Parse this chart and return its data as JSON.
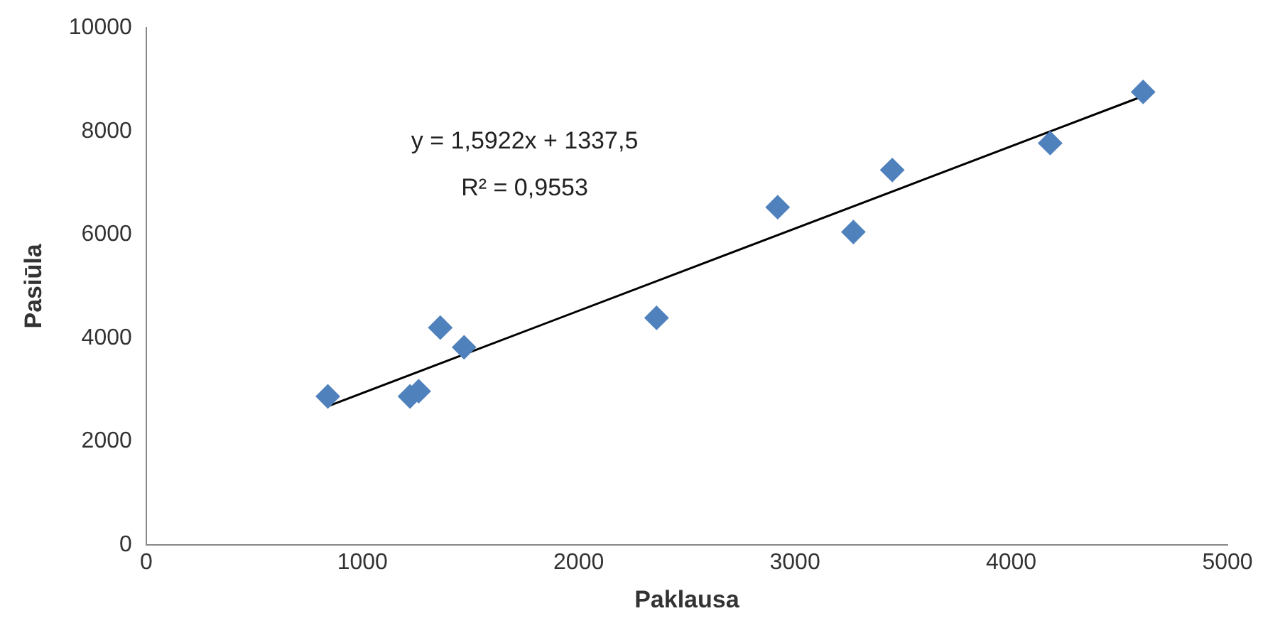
{
  "chart_data": {
    "type": "scatter",
    "xlabel": "Paklausa",
    "ylabel": "Pasiūla",
    "xlim": [
      0,
      5000
    ],
    "xticks": [
      0,
      1000,
      2000,
      3000,
      4000,
      5000
    ],
    "ylim": [
      0,
      10000
    ],
    "yticks": [
      0,
      2000,
      4000,
      6000,
      8000,
      10000
    ],
    "grid": false,
    "legend": false,
    "annotations": [
      "y = 1,5922x + 1337,5",
      "R² = 0,9553"
    ],
    "series": [
      {
        "color": "#4f81bd",
        "marker": "diamond",
        "x": [
          840,
          1220,
          1260,
          1360,
          1470,
          2360,
          2920,
          3270,
          3450,
          4180,
          4610
        ],
        "values": [
          2870,
          2870,
          2970,
          4200,
          3820,
          4390,
          6530,
          6050,
          7250,
          7770,
          8760
        ]
      },
      {
        "type": "line",
        "marker": "none",
        "color": "#000000",
        "x": [
          840,
          4610
        ],
        "values": [
          2680,
          8680
        ]
      }
    ]
  }
}
